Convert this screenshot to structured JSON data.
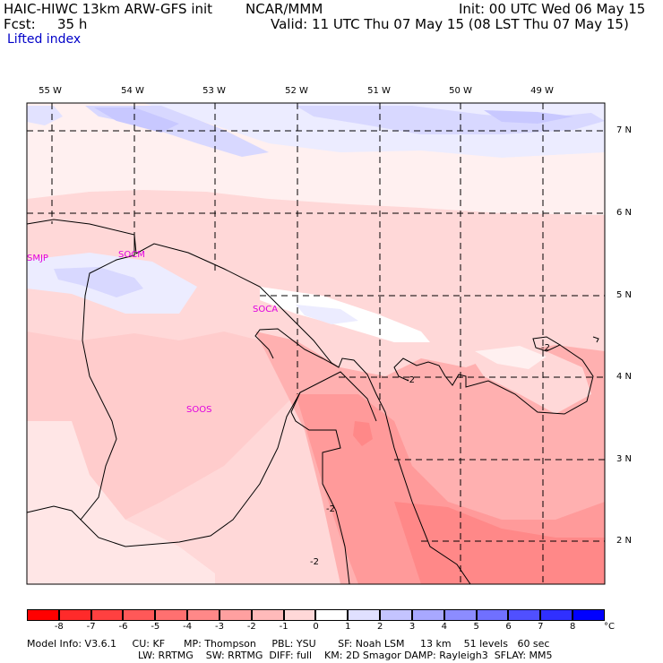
{
  "header": {
    "model": "HAIC-HIWC 13km ARW-GFS init",
    "center": "NCAR/MMM",
    "init": "Init: 00 UTC Wed 06 May 15",
    "fcst_label": "Fcst:",
    "fcst_value": "35 h",
    "valid": "Valid: 11 UTC Thu 07 May 15 (08 LST Thu 07 May 15)",
    "field": "Lifted index"
  },
  "map": {
    "lon_labels": [
      "55 W",
      "54 W",
      "53 W",
      "52 W",
      "51 W",
      "50 W",
      "49 W"
    ],
    "lat_labels": [
      "7 N",
      "6 N",
      "5 N",
      "4 N",
      "3 N",
      "2 N"
    ],
    "stations": [
      "SMJP",
      "SOCM",
      "SOCA",
      "SOOS"
    ],
    "contour_labels": [
      "-2",
      "-2",
      "-2",
      "-2"
    ]
  },
  "colorbar": {
    "ticks": [
      "-8",
      "-7",
      "-6",
      "-5",
      "-4",
      "-3",
      "-2",
      "-1",
      "0",
      "1",
      "2",
      "3",
      "4",
      "5",
      "6",
      "7",
      "8"
    ],
    "unit": "°C",
    "colors": [
      "#ff0000",
      "#ff2a2a",
      "#ff4040",
      "#ff5858",
      "#ff7070",
      "#ff8888",
      "#ffa0a0",
      "#ffbaba",
      "#ffd8d8",
      "#ffffff",
      "#e0e0ff",
      "#c4c4ff",
      "#a8a8ff",
      "#8c8cff",
      "#7070ff",
      "#5050ff",
      "#3030ff",
      "#0000ff"
    ]
  },
  "footer": {
    "line1": "Model Info: V3.6.1     CU: KF      MP: Thompson     PBL: YSU       SF: Noah LSM     13 km    51 levels   60 sec",
    "line2": "LW: RRTMG    SW: RRTMG  DIFF: full    KM: 2D Smagor DAMP: Rayleigh3  SFLAY: MM5"
  }
}
